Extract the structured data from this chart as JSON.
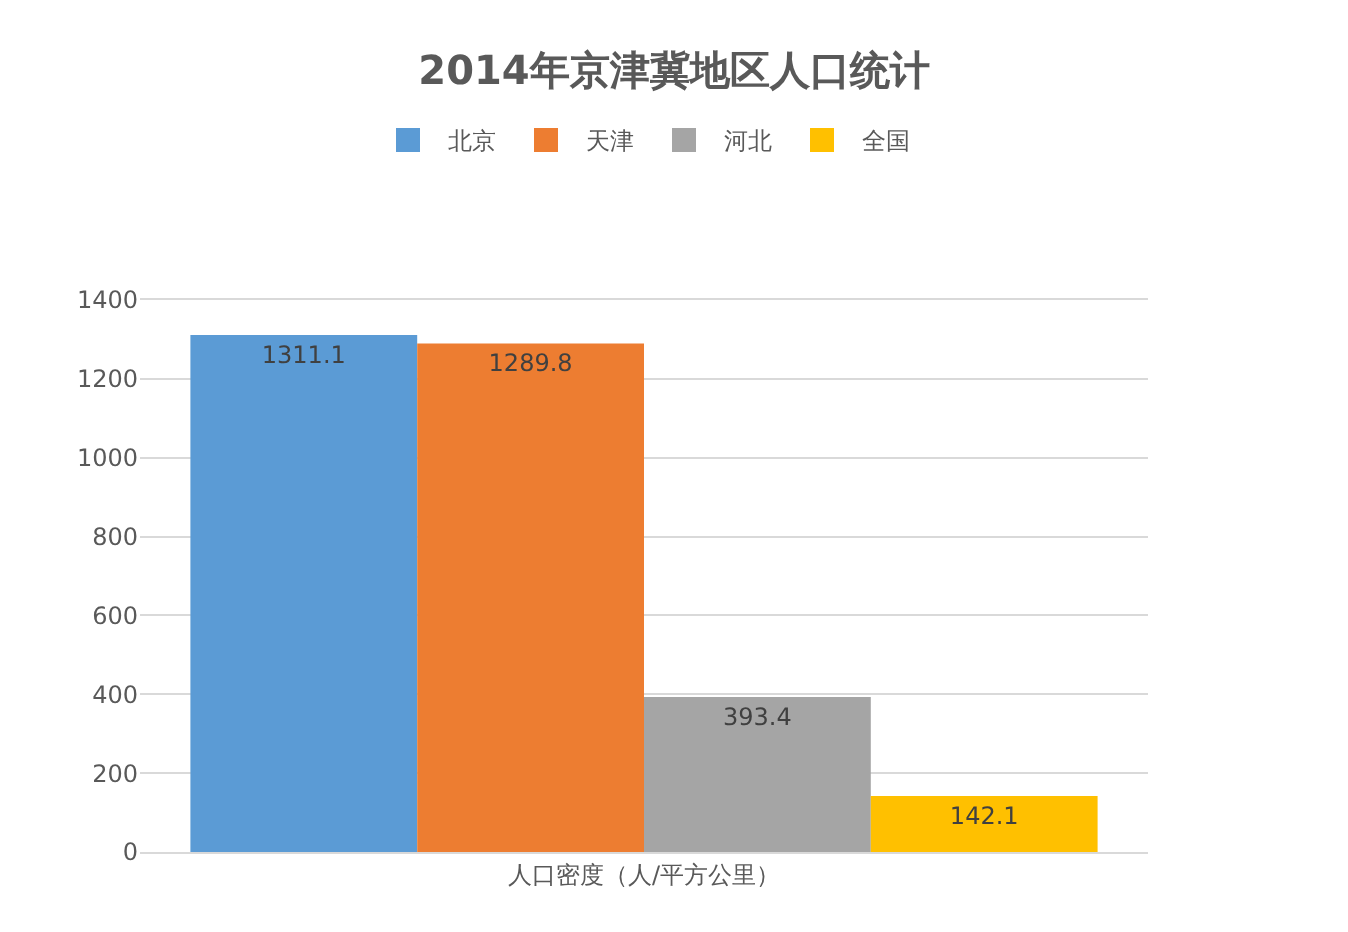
{
  "chart_data": {
    "type": "bar",
    "title": "2014年京津冀地区人口统计",
    "categories": [
      "人口密度（人/平方公里）"
    ],
    "series": [
      {
        "name": "北京",
        "color": "#5b9bd5",
        "values": [
          1311.1
        ]
      },
      {
        "name": "天津",
        "color": "#ed7d31",
        "values": [
          1289.8
        ]
      },
      {
        "name": "河北",
        "color": "#a5a5a5",
        "values": [
          393.4
        ]
      },
      {
        "name": "全国",
        "color": "#ffc000",
        "values": [
          142.1
        ]
      }
    ],
    "ylim": [
      0,
      1400
    ],
    "yticks": [
      0,
      200,
      400,
      600,
      800,
      1000,
      1200,
      1400
    ],
    "grid": "y",
    "legend": "top",
    "data_labels": true
  }
}
